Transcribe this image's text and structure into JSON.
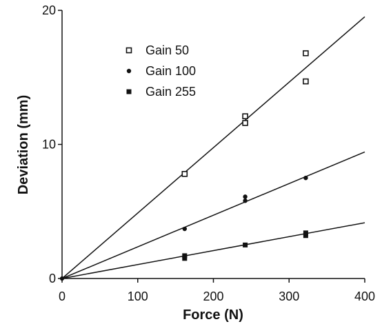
{
  "chart_data": {
    "type": "scatter",
    "xlabel": "Force (N)",
    "ylabel": "Deviation (mm)",
    "xlim": [
      0,
      400
    ],
    "ylim": [
      0,
      20
    ],
    "x_ticks": [
      "0",
      "100",
      "200",
      "300",
      "400"
    ],
    "y_ticks": [
      "0",
      "10",
      "20"
    ],
    "grid": false,
    "legend_position": "top-left",
    "series": [
      {
        "name": "Gain 50",
        "marker": "hollow-square",
        "points": [
          [
            0,
            0
          ],
          [
            162,
            7.8
          ],
          [
            242,
            12.1
          ],
          [
            242,
            11.6
          ],
          [
            322,
            16.8
          ],
          [
            322,
            14.7
          ]
        ],
        "fit_slope": 0.0488
      },
      {
        "name": "Gain 100",
        "marker": "filled-circle",
        "points": [
          [
            0,
            0
          ],
          [
            162,
            3.7
          ],
          [
            242,
            6.1
          ],
          [
            242,
            5.8
          ],
          [
            322,
            7.5
          ]
        ],
        "fit_slope": 0.0236
      },
      {
        "name": "Gain 255",
        "marker": "filled-square",
        "points": [
          [
            0,
            0
          ],
          [
            162,
            1.5
          ],
          [
            162,
            1.7
          ],
          [
            242,
            2.5
          ],
          [
            322,
            3.2
          ],
          [
            322,
            3.4
          ]
        ],
        "fit_slope": 0.0104
      }
    ]
  }
}
